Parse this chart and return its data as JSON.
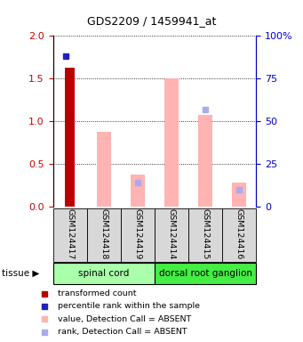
{
  "title": "GDS2209 / 1459941_at",
  "samples": [
    "GSM124417",
    "GSM124418",
    "GSM124419",
    "GSM124414",
    "GSM124415",
    "GSM124416"
  ],
  "red_bar": [
    1.63,
    0,
    0,
    0,
    0,
    0
  ],
  "blue_dot_right": [
    88,
    0,
    0,
    0,
    0,
    0
  ],
  "pink_bar": [
    0,
    0.88,
    0.38,
    1.5,
    1.08,
    0.28
  ],
  "lavender_dot_right": [
    0,
    0,
    14,
    0,
    57,
    10
  ],
  "lavender_dot_left": [
    0,
    0,
    0.14,
    0,
    0.57,
    0.1
  ],
  "ylim_left": [
    0,
    2
  ],
  "ylim_right": [
    0,
    100
  ],
  "yticks_left": [
    0,
    0.5,
    1.0,
    1.5,
    2.0
  ],
  "yticks_right": [
    0,
    25,
    50,
    75,
    100
  ],
  "ytick_labels_right": [
    "0",
    "25",
    "50",
    "75",
    "100%"
  ],
  "left_color": "#cc0000",
  "right_color": "#0000cc",
  "pink_color": "#ffb3b3",
  "lavender_color": "#aaaaee",
  "red_color": "#bb0000",
  "blue_color": "#2222bb",
  "tissue_groups": [
    {
      "label": "spinal cord",
      "start": 0,
      "end": 3,
      "color": "#aaffaa"
    },
    {
      "label": "dorsal root ganglion",
      "start": 3,
      "end": 6,
      "color": "#44ee44"
    }
  ],
  "legend_items": [
    {
      "color": "#bb0000",
      "label": "transformed count"
    },
    {
      "color": "#2222bb",
      "label": "percentile rank within the sample"
    },
    {
      "color": "#ffb3b3",
      "label": "value, Detection Call = ABSENT"
    },
    {
      "color": "#aaaaee",
      "label": "rank, Detection Call = ABSENT"
    }
  ]
}
